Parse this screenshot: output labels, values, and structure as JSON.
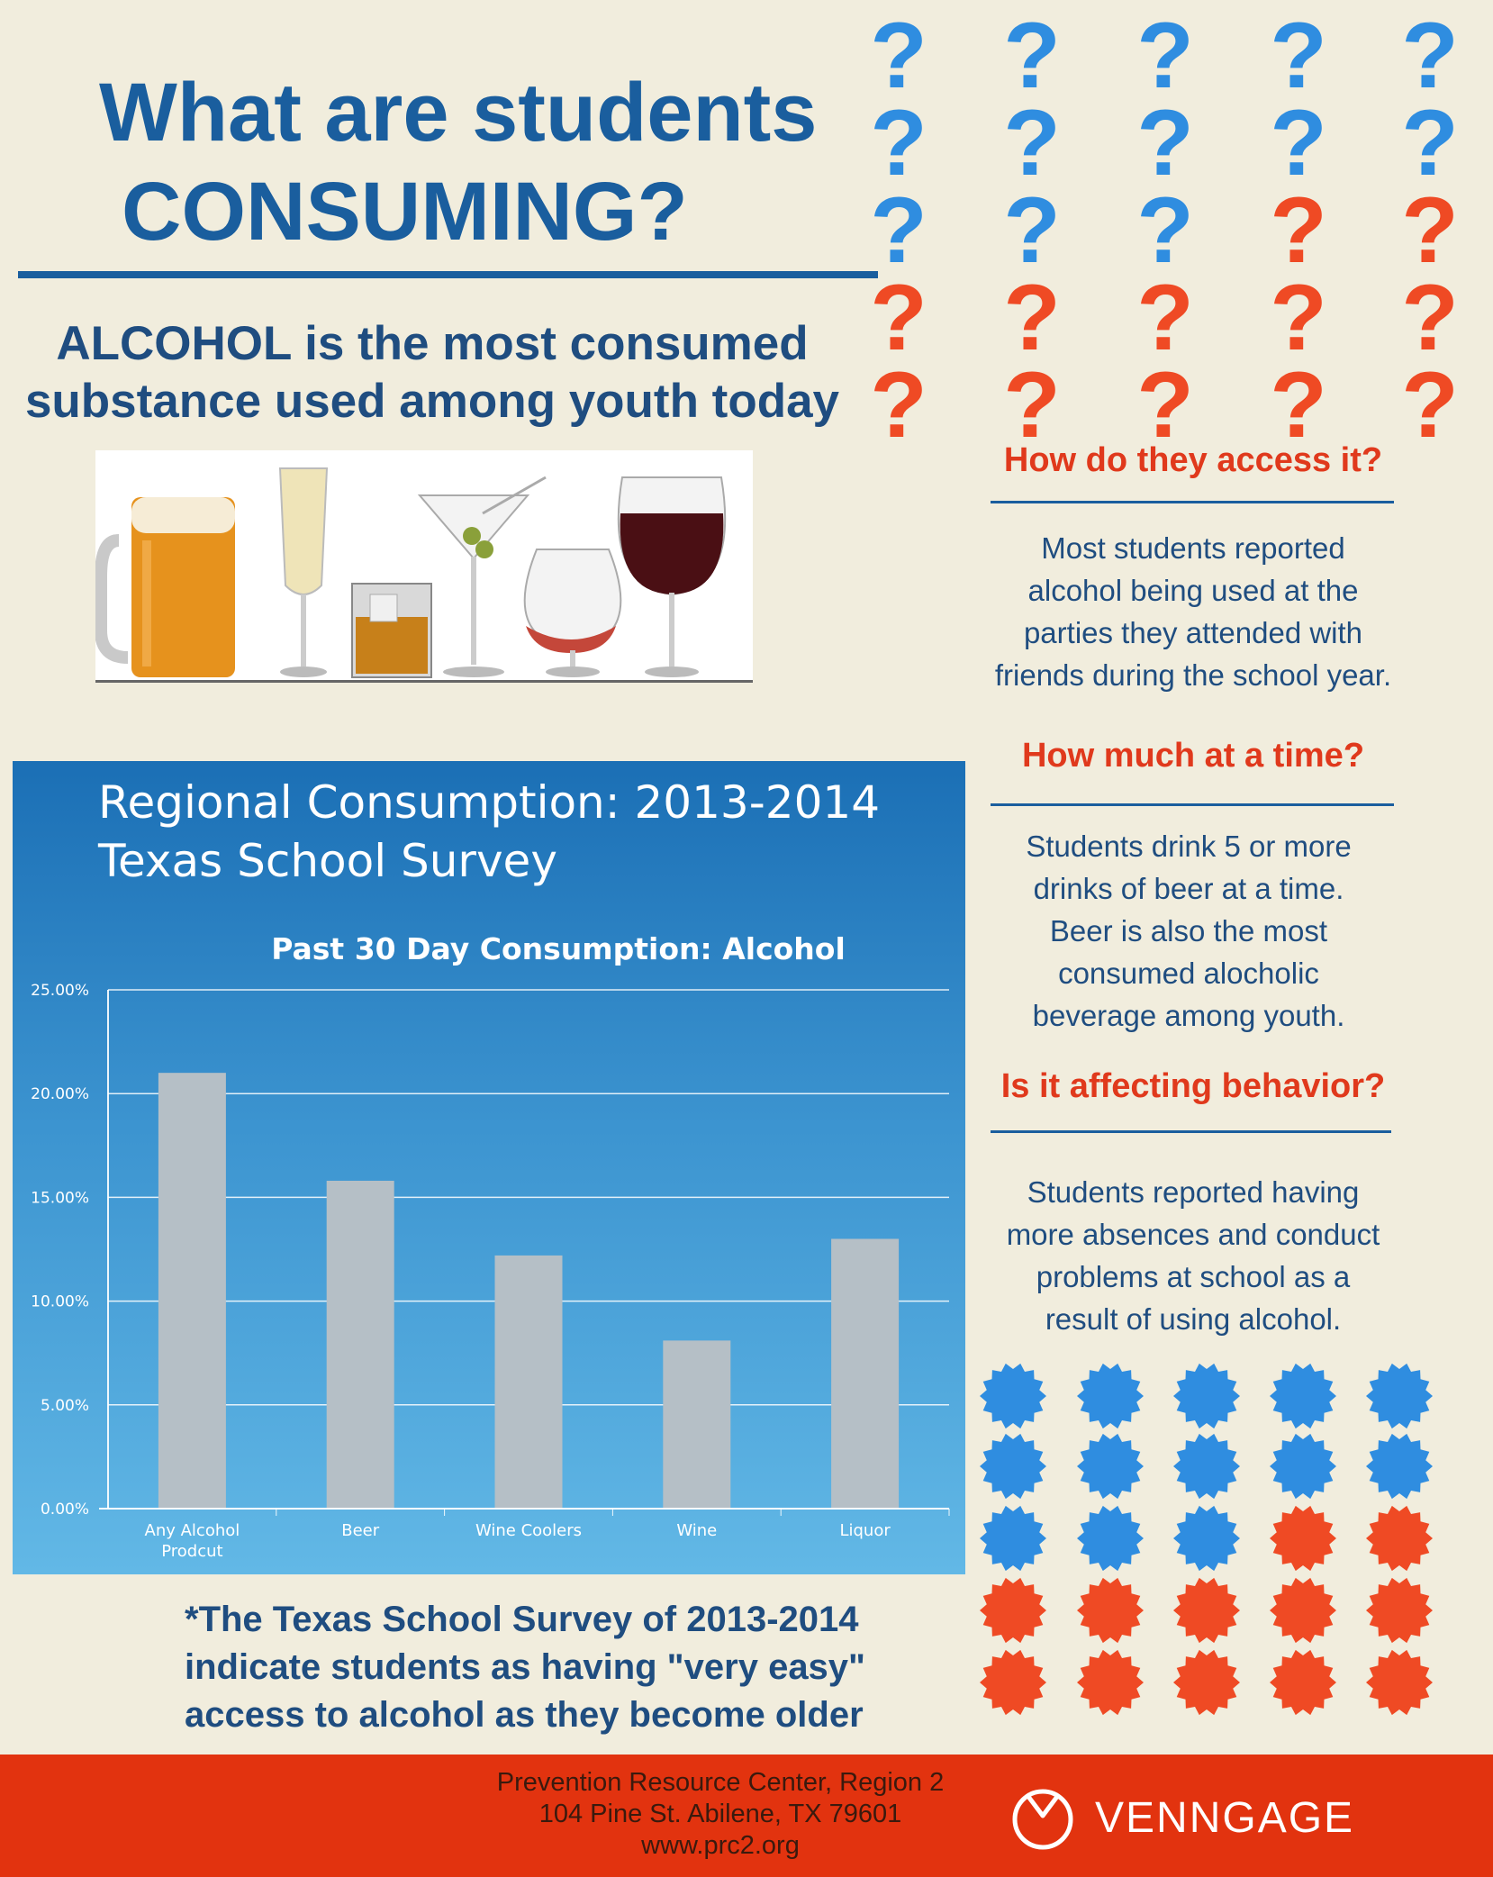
{
  "header": {
    "title_line1": "What are students",
    "title_line2": "CONSUMING?",
    "subtitle": "ALCOHOL is the most consumed substance used among youth today"
  },
  "question_marks": {
    "rows": 5,
    "cols": 5,
    "blue_count": 13,
    "blue_color": "#2f8de0",
    "red_color": "#ef4a24"
  },
  "sections": [
    {
      "heading": "How do they access it?",
      "body": "Most students reported alcohol being used at the parties they attended with friends during the school year."
    },
    {
      "heading": "How much at a time?",
      "body": "Students drink 5 or more drinks of beer at a time. Beer is also the most consumed alocholic beverage among youth."
    },
    {
      "heading": "Is it affecting behavior?",
      "body": "Students reported having more absences and conduct problems at school as a result of using alcohol."
    }
  ],
  "chart_data": {
    "type": "bar",
    "title": "Regional Consumption: 2013-2014",
    "subtitle": "Texas School Survey",
    "plot_title": "Past 30 Day Consumption: Alcohol",
    "categories": [
      "Any Alcohol Prodcut",
      "Beer",
      "Wine Coolers",
      "Wine",
      "Liquor"
    ],
    "values": [
      21.0,
      15.8,
      12.2,
      8.1,
      13.0
    ],
    "ylim": [
      0,
      25
    ],
    "yticks": [
      "0.00%",
      "5.00%",
      "10.00%",
      "15.00%",
      "20.00%",
      "25.00%"
    ],
    "grid": true,
    "bar_color": "#b5bfc6"
  },
  "note": "*The Texas School Survey of 2013-2014 indicate students as having \"very easy\" access to alcohol as they become older",
  "badges": {
    "rows": 5,
    "cols": 5,
    "blue_count": 13,
    "blue_color": "#2f8de0",
    "red_color": "#ef4a24"
  },
  "footer": {
    "org": "Prevention Resource Center, Region 2",
    "address": "104 Pine St. Abilene, TX 79601",
    "website": "www.prc2.org",
    "brand": "VENNGAGE"
  }
}
